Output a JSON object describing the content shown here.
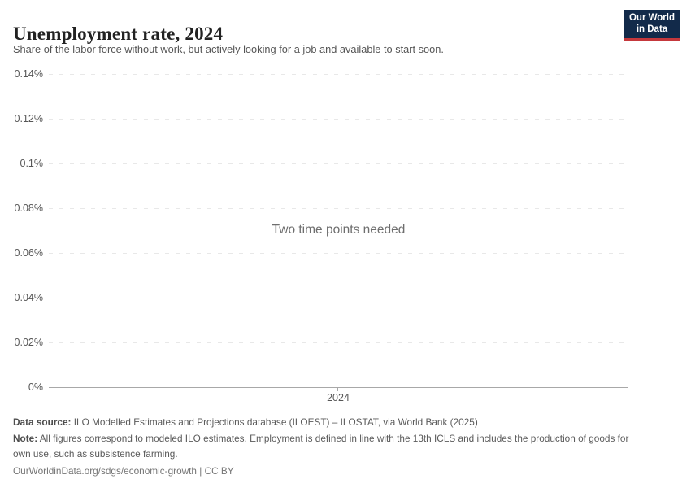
{
  "header": {
    "title": "Unemployment rate, 2024",
    "subtitle": "Share of the labor force without work, but actively looking for a job and available to start soon.",
    "logo": {
      "line1": "Our World",
      "line2": "in Data"
    }
  },
  "chart_data": {
    "type": "line",
    "title": "Unemployment rate, 2024",
    "subtitle": "Share of the labor force without work, but actively looking for a job and available to start soon.",
    "series": [],
    "message": "Two time points needed",
    "x": {
      "ticks": [
        "2024"
      ]
    },
    "y": {
      "ticks": [
        "0.14%",
        "0.12%",
        "0.1%",
        "0.08%",
        "0.06%",
        "0.04%",
        "0.02%",
        "0%"
      ],
      "range_pct": [
        0,
        0.14
      ],
      "unit": "%",
      "grid": true,
      "grid_style": "dashed"
    },
    "legend": "none"
  },
  "footer": {
    "datasource_label": "Data source:",
    "datasource_text": " ILO Modelled Estimates and Projections database (ILOEST) – ILOSTAT, via World Bank (2025)",
    "note_label": "Note:",
    "note_text": " All figures correspond to modeled ILO estimates. Employment is defined in line with the 13th ICLS and includes the production of goods for own use, such as subsistence farming.",
    "link": "OurWorldinData.org/sdgs/economic-growth | CC BY"
  },
  "colors": {
    "logo_navy": "#122a4a",
    "logo_red": "#c5383c",
    "gridline": "#e8e8e8",
    "axis": "#a8a8a8",
    "tick_text": "#565656",
    "title_text": "#222222",
    "subtitle_text": "#555555",
    "message_text": "#6e6e6e",
    "footer_text": "#5b5b5b"
  }
}
